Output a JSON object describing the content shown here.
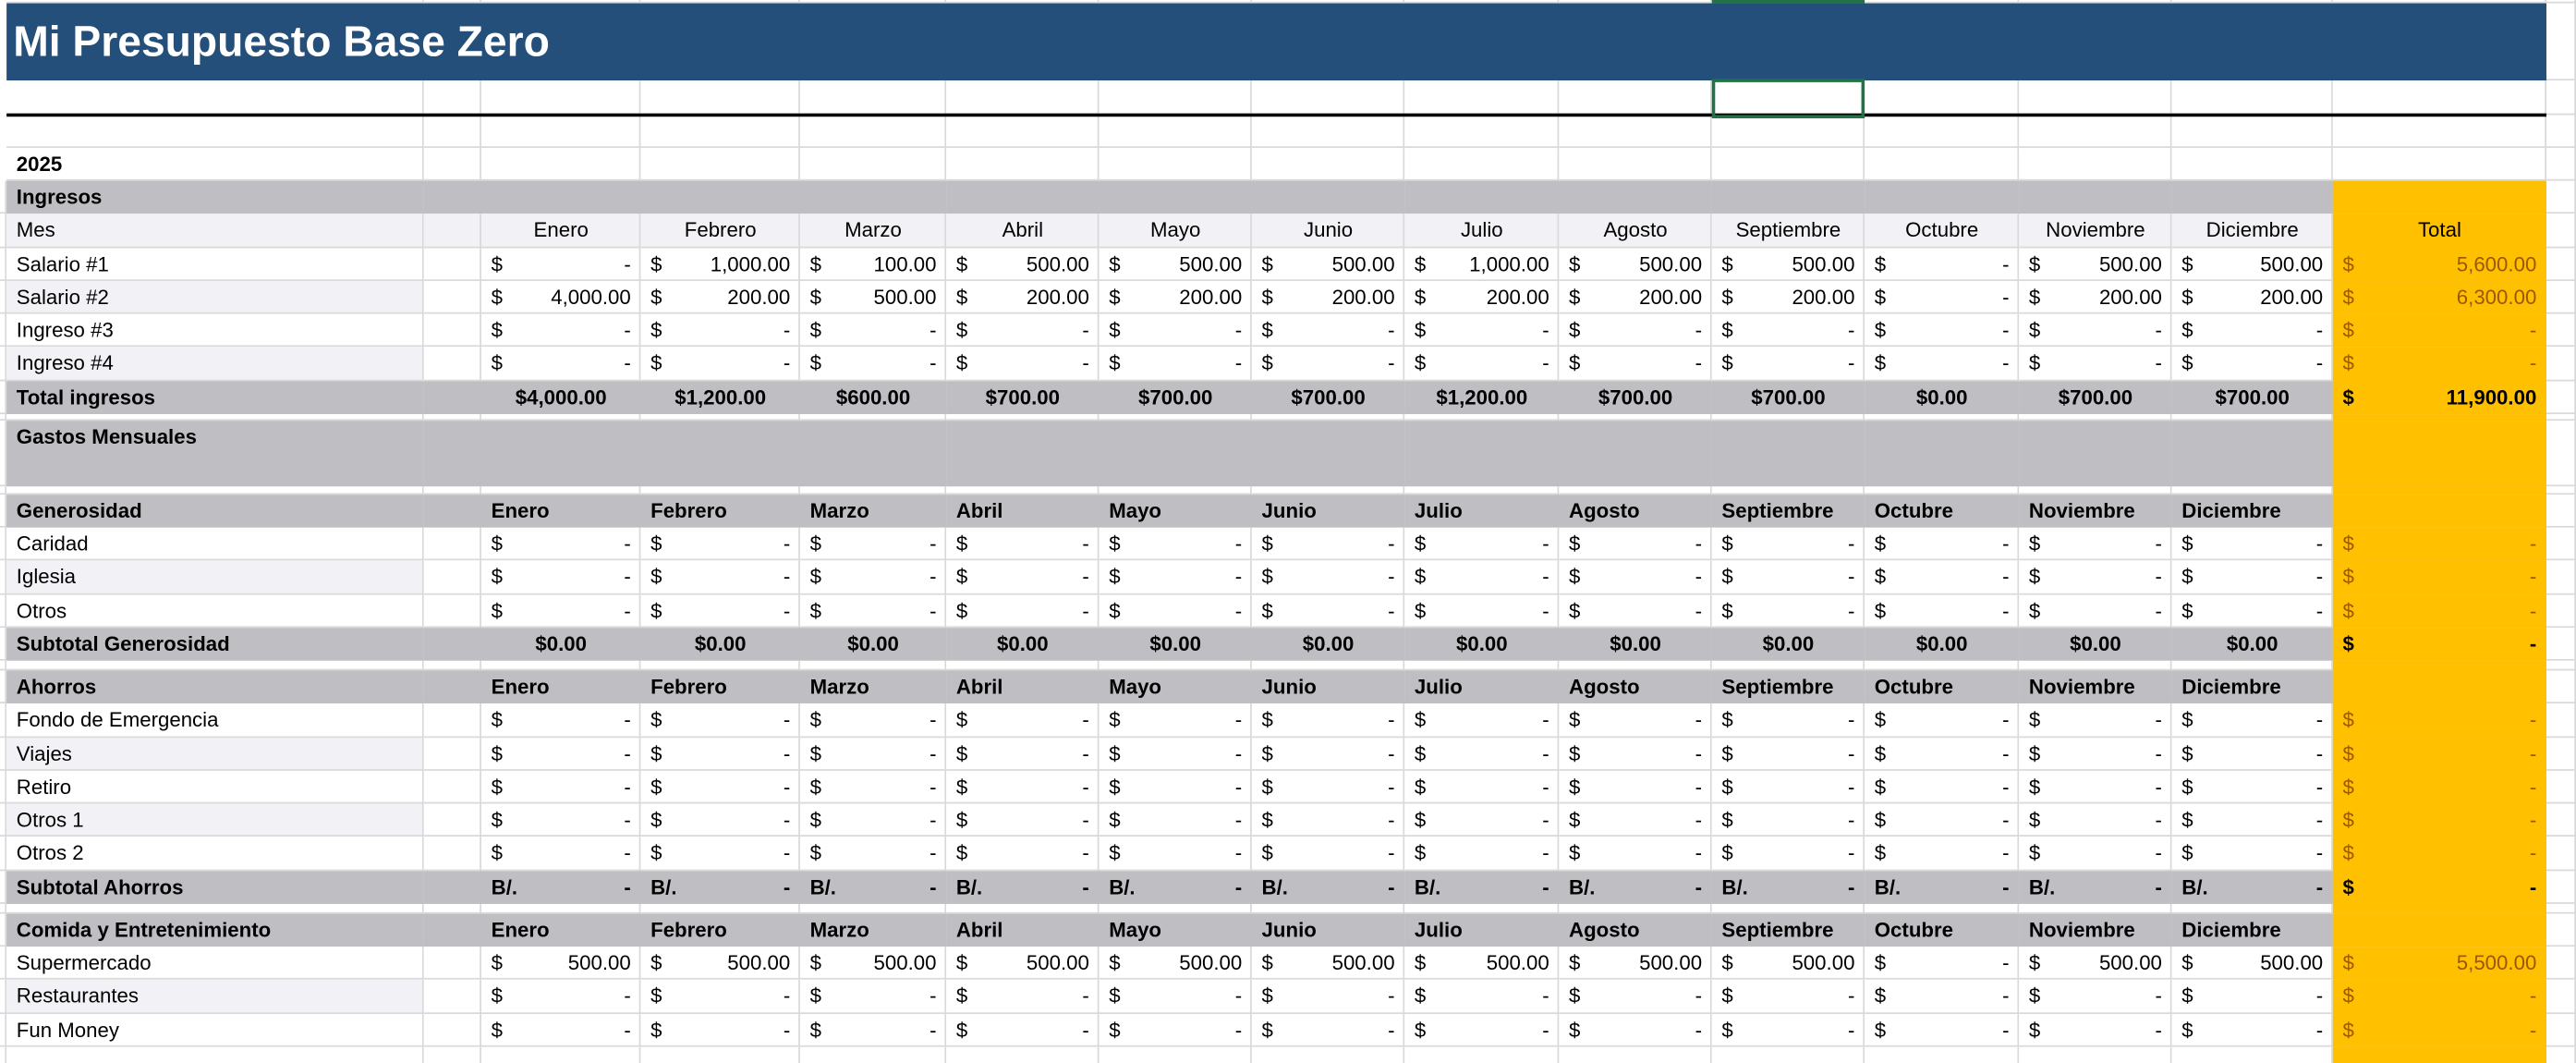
{
  "title": "Mi Presupuesto Base Zero",
  "year": "2025",
  "currency": "$",
  "months": [
    "Enero",
    "Febrero",
    "Marzo",
    "Abril",
    "Mayo",
    "Junio",
    "Julio",
    "Agosto",
    "Septiembre",
    "Octubre",
    "Noviembre",
    "Diciembre"
  ],
  "ingresos": {
    "label": "Ingresos",
    "header_label": "Mes",
    "total_header": "Total",
    "rows": [
      {
        "label": "Salario #1",
        "values": [
          "-",
          "1,000.00",
          "100.00",
          "500.00",
          "500.00",
          "500.00",
          "1,000.00",
          "500.00",
          "500.00",
          "-",
          "500.00",
          "500.00"
        ],
        "total": "5,600.00"
      },
      {
        "label": "Salario #2",
        "values": [
          "4,000.00",
          "200.00",
          "500.00",
          "200.00",
          "200.00",
          "200.00",
          "200.00",
          "200.00",
          "200.00",
          "-",
          "200.00",
          "200.00"
        ],
        "total": "6,300.00"
      },
      {
        "label": "Ingreso #3",
        "values": [
          "-",
          "-",
          "-",
          "-",
          "-",
          "-",
          "-",
          "-",
          "-",
          "-",
          "-",
          "-"
        ],
        "total": "-"
      },
      {
        "label": "Ingreso #4",
        "values": [
          "-",
          "-",
          "-",
          "-",
          "-",
          "-",
          "-",
          "-",
          "-",
          "-",
          "-",
          "-"
        ],
        "total": "-"
      }
    ],
    "total_row": {
      "label": "Total ingresos",
      "values": [
        "$4,000.00",
        "$1,200.00",
        "$600.00",
        "$700.00",
        "$700.00",
        "$700.00",
        "$1,200.00",
        "$700.00",
        "$700.00",
        "$0.00",
        "$700.00",
        "$700.00"
      ],
      "total": "11,900.00"
    }
  },
  "gastos_label": "Gastos Mensuales",
  "groups": [
    {
      "label": "Generosidad",
      "rows": [
        {
          "label": "Caridad",
          "values": [
            "-",
            "-",
            "-",
            "-",
            "-",
            "-",
            "-",
            "-",
            "-",
            "-",
            "-",
            "-"
          ],
          "total": "-"
        },
        {
          "label": "Iglesia",
          "values": [
            "-",
            "-",
            "-",
            "-",
            "-",
            "-",
            "-",
            "-",
            "-",
            "-",
            "-",
            "-"
          ],
          "total": "-"
        },
        {
          "label": "Otros",
          "values": [
            "-",
            "-",
            "-",
            "-",
            "-",
            "-",
            "-",
            "-",
            "-",
            "-",
            "-",
            "-"
          ],
          "total": "-"
        }
      ],
      "subtotal": {
        "label": "Subtotal Generosidad",
        "values": [
          "$0.00",
          "$0.00",
          "$0.00",
          "$0.00",
          "$0.00",
          "$0.00",
          "$0.00",
          "$0.00",
          "$0.00",
          "$0.00",
          "$0.00",
          "$0.00"
        ],
        "total": "-"
      }
    },
    {
      "label": "Ahorros",
      "rows": [
        {
          "label": "Fondo de Emergencia",
          "values": [
            "-",
            "-",
            "-",
            "-",
            "-",
            "-",
            "-",
            "-",
            "-",
            "-",
            "-",
            "-"
          ],
          "total": "-"
        },
        {
          "label": "Viajes",
          "values": [
            "-",
            "-",
            "-",
            "-",
            "-",
            "-",
            "-",
            "-",
            "-",
            "-",
            "-",
            "-"
          ],
          "total": "-"
        },
        {
          "label": "Retiro",
          "values": [
            "-",
            "-",
            "-",
            "-",
            "-",
            "-",
            "-",
            "-",
            "-",
            "-",
            "-",
            "-"
          ],
          "total": "-"
        },
        {
          "label": "Otros 1",
          "values": [
            "-",
            "-",
            "-",
            "-",
            "-",
            "-",
            "-",
            "-",
            "-",
            "-",
            "-",
            "-"
          ],
          "total": "-"
        },
        {
          "label": "Otros 2",
          "values": [
            "-",
            "-",
            "-",
            "-",
            "-",
            "-",
            "-",
            "-",
            "-",
            "-",
            "-",
            "-"
          ],
          "total": "-"
        }
      ],
      "subtotal": {
        "label": "Subtotal Ahorros",
        "prefix": "B/.",
        "values": [
          "-",
          "-",
          "-",
          "-",
          "-",
          "-",
          "-",
          "-",
          "-",
          "-",
          "-",
          "-"
        ],
        "total": "-"
      }
    },
    {
      "label": "Comida y Entretenimiento",
      "rows": [
        {
          "label": "Supermercado",
          "values": [
            "500.00",
            "500.00",
            "500.00",
            "500.00",
            "500.00",
            "500.00",
            "500.00",
            "500.00",
            "500.00",
            "-",
            "500.00",
            "500.00"
          ],
          "total": "5,500.00"
        },
        {
          "label": "Restaurantes",
          "values": [
            "-",
            "-",
            "-",
            "-",
            "-",
            "-",
            "-",
            "-",
            "-",
            "-",
            "-",
            "-"
          ],
          "total": "-"
        },
        {
          "label": "Fun Money",
          "values": [
            "-",
            "-",
            "-",
            "-",
            "-",
            "-",
            "-",
            "-",
            "-",
            "-",
            "-",
            "-"
          ],
          "total": "-"
        }
      ]
    }
  ]
}
